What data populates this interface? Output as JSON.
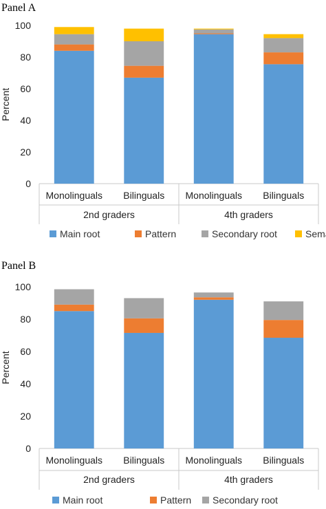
{
  "chart_data": [
    {
      "type": "bar",
      "stacked": true,
      "title": "Panel A",
      "ylabel": "Percent",
      "ylim": [
        0,
        100
      ],
      "yticks": [
        "0",
        "20",
        "40",
        "60",
        "80",
        "100"
      ],
      "categories": [
        "Monolinguals",
        "Bilinguals",
        "Monolinguals",
        "Bilinguals"
      ],
      "groups": [
        {
          "label": "2nd graders",
          "span": [
            0,
            1
          ]
        },
        {
          "label": "4th graders",
          "span": [
            2,
            3
          ]
        }
      ],
      "series": [
        {
          "name": "Main root",
          "color": "#5B9BD5",
          "values": [
            84,
            67,
            94.5,
            75.5
          ]
        },
        {
          "name": "Pattern",
          "color": "#ED7D31",
          "values": [
            4,
            7.5,
            0.5,
            7.5
          ]
        },
        {
          "name": "Secondary root",
          "color": "#A5A5A5",
          "values": [
            6.5,
            15.5,
            2.5,
            9
          ]
        },
        {
          "name": "Semantic",
          "color": "#FFC000",
          "values": [
            4.5,
            8,
            0.5,
            2.5
          ]
        }
      ],
      "legend": "bottom",
      "grid": false
    },
    {
      "type": "bar",
      "stacked": true,
      "title": "Panel B",
      "ylabel": "Percent",
      "ylim": [
        0,
        100
      ],
      "yticks": [
        "0",
        "20",
        "40",
        "60",
        "80",
        "100"
      ],
      "categories": [
        "Monolinguals",
        "Bilinguals",
        "Monolinguals",
        "Bilinguals"
      ],
      "groups": [
        {
          "label": "2nd graders",
          "span": [
            0,
            1
          ]
        },
        {
          "label": "4th graders",
          "span": [
            2,
            3
          ]
        }
      ],
      "series": [
        {
          "name": "Main root",
          "color": "#5B9BD5",
          "values": [
            85,
            71.5,
            92,
            68.5
          ]
        },
        {
          "name": "Pattern",
          "color": "#ED7D31",
          "values": [
            4,
            9,
            1.5,
            11
          ]
        },
        {
          "name": "Secondary root",
          "color": "#A5A5A5",
          "values": [
            9.5,
            12.5,
            3,
            11.5
          ]
        }
      ],
      "legend": "bottom",
      "grid": false
    }
  ]
}
